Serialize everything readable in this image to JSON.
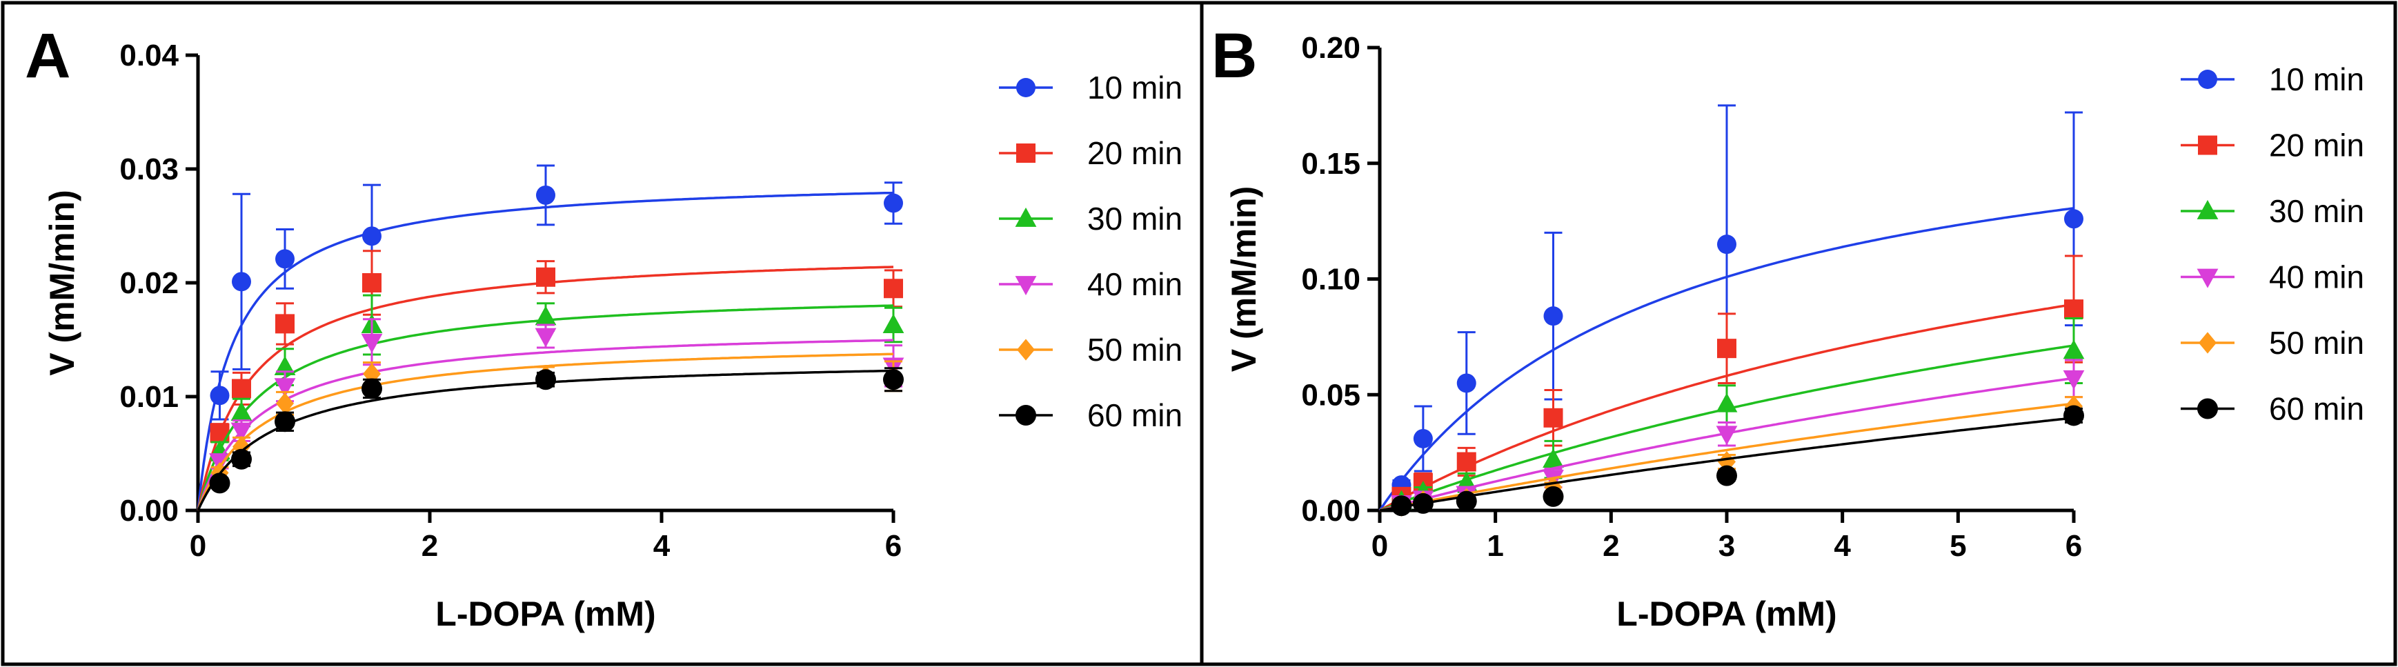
{
  "chart_data": [
    {
      "panel_label": "A",
      "type": "scatter",
      "xlabel": "L-DOPA (mM)",
      "ylabel": "V (mM/min)",
      "xlim": [
        0,
        6
      ],
      "ylim": [
        0,
        0.04
      ],
      "x_ticks": [
        0,
        2,
        4,
        6
      ],
      "x_tick_labels": [
        "0",
        "2",
        "4",
        "6"
      ],
      "y_ticks": [
        0,
        0.01,
        0.02,
        0.03,
        0.04
      ],
      "y_tick_labels": [
        "0.00",
        "0.01",
        "0.02",
        "0.03",
        "0.04"
      ],
      "legend_position": "right",
      "x": [
        0.1875,
        0.375,
        0.75,
        1.5,
        3,
        6
      ],
      "series": [
        {
          "name": "10 min",
          "color": "#1f3fe8",
          "marker": "circle",
          "values": [
            0.0101,
            0.0201,
            0.0221,
            0.0241,
            0.0277,
            0.027
          ],
          "errors": [
            0.0021,
            0.0077,
            0.0026,
            0.0045,
            0.0026,
            0.0018
          ],
          "fit": {
            "vmax": 0.0293,
            "km": 0.3
          }
        },
        {
          "name": "20 min",
          "color": "#ee3224",
          "marker": "square",
          "values": [
            0.0068,
            0.0107,
            0.0164,
            0.02,
            0.0205,
            0.0195
          ],
          "errors": [
            0.0008,
            0.0014,
            0.0018,
            0.0028,
            0.0014,
            0.0016
          ],
          "fit": {
            "vmax": 0.023,
            "km": 0.45
          }
        },
        {
          "name": "30 min",
          "color": "#1fbf1f",
          "marker": "triangle-up",
          "values": [
            0.0052,
            0.0086,
            0.0126,
            0.0163,
            0.017,
            0.0163
          ],
          "errors": [
            0.0008,
            0.0012,
            0.0016,
            0.0026,
            0.0012,
            0.0015
          ],
          "fit": {
            "vmax": 0.0195,
            "km": 0.5
          }
        },
        {
          "name": "40 min",
          "color": "#d93ed9",
          "marker": "triangle-down",
          "values": [
            0.0043,
            0.007,
            0.0109,
            0.0148,
            0.0153,
            0.0127
          ],
          "errors": [
            0.0006,
            0.0009,
            0.0013,
            0.002,
            0.001,
            0.0018
          ],
          "fit": {
            "vmax": 0.0162,
            "km": 0.5
          }
        },
        {
          "name": "50 min",
          "color": "#ff9a1a",
          "marker": "diamond",
          "values": [
            0.0033,
            0.0056,
            0.0094,
            0.012,
            0.0118,
            0.0118
          ],
          "errors": [
            0.0005,
            0.0008,
            0.001,
            0.001,
            0.0008,
            0.0013
          ],
          "fit": {
            "vmax": 0.015,
            "km": 0.55
          }
        },
        {
          "name": "60 min",
          "color": "#000000",
          "marker": "circle",
          "values": [
            0.0024,
            0.0045,
            0.0078,
            0.0107,
            0.0115,
            0.0115
          ],
          "errors": [
            0.0004,
            0.0006,
            0.0008,
            0.0008,
            0.0006,
            0.001
          ],
          "fit": {
            "vmax": 0.0135,
            "km": 0.6
          }
        }
      ]
    },
    {
      "panel_label": "B",
      "type": "scatter",
      "xlabel": "L-DOPA (mM)",
      "ylabel": "V (mM/min)",
      "xlim": [
        0,
        6
      ],
      "ylim": [
        0,
        0.2
      ],
      "x_ticks": [
        0,
        1,
        2,
        3,
        4,
        5,
        6
      ],
      "x_tick_labels": [
        "0",
        "1",
        "2",
        "3",
        "4",
        "5",
        "6"
      ],
      "y_ticks": [
        0,
        0.05,
        0.1,
        0.15,
        0.2
      ],
      "y_tick_labels": [
        "0.00",
        "0.05",
        "0.10",
        "0.15",
        "0.20"
      ],
      "legend_position": "right",
      "x": [
        0.1875,
        0.375,
        0.75,
        1.5,
        3,
        6
      ],
      "series": [
        {
          "name": "10 min",
          "color": "#1f3fe8",
          "marker": "circle",
          "values": [
            0.011,
            0.031,
            0.055,
            0.084,
            0.115,
            0.126
          ],
          "errors": [
            0.002,
            0.014,
            0.022,
            0.036,
            0.06,
            0.046
          ],
          "fit": {
            "vmax": 0.185,
            "km": 2.5
          }
        },
        {
          "name": "20 min",
          "color": "#ee3224",
          "marker": "square",
          "values": [
            0.006,
            0.012,
            0.021,
            0.04,
            0.07,
            0.087
          ],
          "errors": [
            0.001,
            0.004,
            0.006,
            0.012,
            0.015,
            0.023
          ],
          "fit": {
            "vmax": 0.19,
            "km": 6.8
          }
        },
        {
          "name": "30 min",
          "color": "#1fbf1f",
          "marker": "triangle-up",
          "values": [
            0.004,
            0.008,
            0.012,
            0.022,
            0.046,
            0.069
          ],
          "errors": [
            0.001,
            0.002,
            0.004,
            0.008,
            0.008,
            0.014
          ],
          "fit": {
            "vmax": 0.19,
            "km": 10.0
          }
        },
        {
          "name": "40 min",
          "color": "#d93ed9",
          "marker": "triangle-down",
          "values": [
            0.003,
            0.005,
            0.007,
            0.014,
            0.033,
            0.057
          ],
          "errors": [
            0.001,
            0.001,
            0.002,
            0.004,
            0.005,
            0.008
          ],
          "fit": {
            "vmax": 0.2,
            "km": 15.0
          }
        },
        {
          "name": "50 min",
          "color": "#ff9a1a",
          "marker": "diamond",
          "values": [
            0.002,
            0.004,
            0.005,
            0.01,
            0.021,
            0.045
          ],
          "errors": [
            0.001,
            0.001,
            0.001,
            0.002,
            0.003,
            0.004
          ],
          "fit": {
            "vmax": 0.2,
            "km": 20.0
          }
        },
        {
          "name": "60 min",
          "color": "#000000",
          "marker": "circle",
          "values": [
            0.002,
            0.003,
            0.004,
            0.006,
            0.015,
            0.041
          ],
          "errors": [
            0.0,
            0.001,
            0.001,
            0.001,
            0.002,
            0.003
          ],
          "fit": {
            "vmax": 0.2,
            "km": 24.0
          }
        }
      ]
    }
  ]
}
